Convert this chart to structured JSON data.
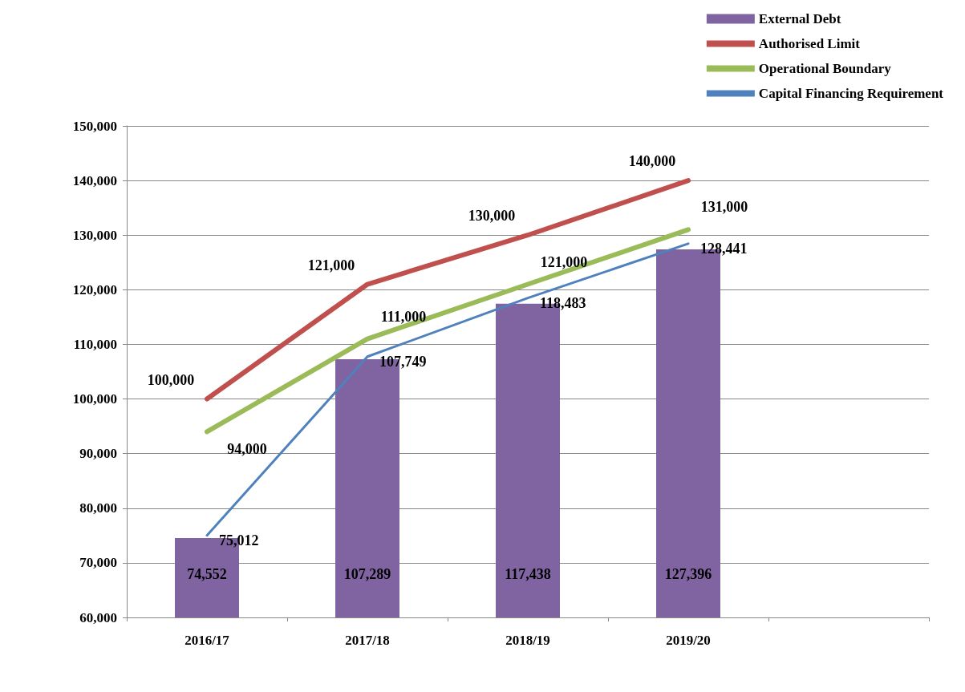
{
  "chart_data": {
    "type": "bar",
    "categories": [
      "2016/17",
      "2017/18",
      "2018/19",
      "2019/20",
      null
    ],
    "series": [
      {
        "name": "External Debt",
        "color": "#8064a2",
        "values": [
          74552,
          107289,
          117438,
          127396,
          null
        ],
        "value_labels": [
          "74,552",
          "107,289",
          "117,438",
          "127,396",
          null
        ]
      },
      {
        "name": "Authorised Limit",
        "type": "line",
        "color": "#c0504d",
        "values": [
          100000,
          121000,
          130000,
          140000,
          null
        ],
        "value_labels": [
          "100,000",
          "121,000",
          "130,000",
          "140,000",
          null
        ]
      },
      {
        "name": "Operational Boundary",
        "type": "line",
        "color": "#9bbb59",
        "values": [
          94000,
          111000,
          121000,
          131000,
          null
        ],
        "value_labels": [
          "94,000",
          "111,000",
          "121,000",
          "131,000",
          null
        ]
      },
      {
        "name": "Capital Financing Requirement",
        "type": "line",
        "color": "#4f81bd",
        "values": [
          75012,
          107749,
          118483,
          128441,
          null
        ],
        "value_labels": [
          "75,012",
          "107,749",
          "118,483",
          "128,441",
          null
        ]
      }
    ],
    "ylim": [
      60000,
      150000
    ],
    "yticks": [
      {
        "value": 60000,
        "label": "60,000"
      },
      {
        "value": 70000,
        "label": "70,000"
      },
      {
        "value": 80000,
        "label": "80,000"
      },
      {
        "value": 90000,
        "label": "90,000"
      },
      {
        "value": 100000,
        "label": "100,000"
      },
      {
        "value": 110000,
        "label": "110,000"
      },
      {
        "value": 120000,
        "label": "120,000"
      },
      {
        "value": 130000,
        "label": "130,000"
      },
      {
        "value": 140000,
        "label": "140,000"
      },
      {
        "value": 150000,
        "label": "150,000"
      }
    ],
    "grid": "y",
    "legend": "top right"
  }
}
